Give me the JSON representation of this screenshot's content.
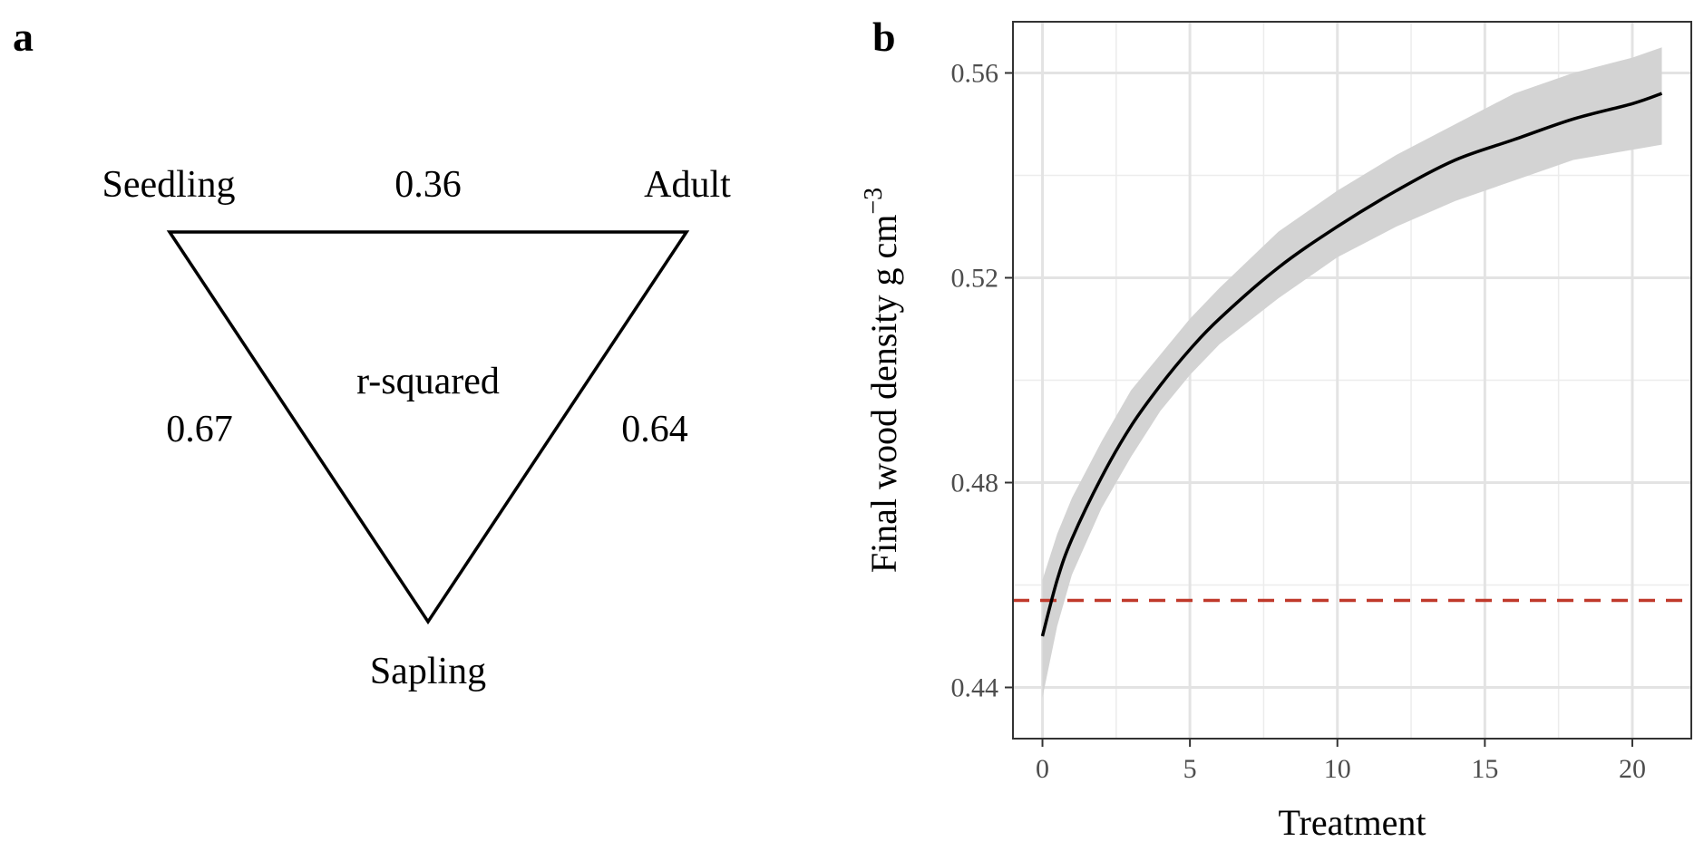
{
  "panel_a": {
    "letter": "a",
    "center_label": "r-squared",
    "nodes": {
      "seedling": "Seedling",
      "adult": "Adult",
      "sapling": "Sapling"
    },
    "edges": {
      "seedling_adult": "0.36",
      "seedling_sapling": "0.67",
      "adult_sapling": "0.64"
    }
  },
  "panel_b": {
    "letter": "b",
    "reference_color": "#c0392b",
    "ribbon_color": "#d3d3d3"
  },
  "chart_data": {
    "type": "line",
    "xlabel": "Treatment",
    "ylabel": "Final wood density g cm",
    "ylabel_superscript": "−3",
    "xlim": [
      -1,
      22
    ],
    "ylim": [
      0.43,
      0.57
    ],
    "xticks": [
      0,
      5,
      10,
      15,
      20
    ],
    "xtick_labels": [
      "0",
      "5",
      "10",
      "15",
      "20"
    ],
    "yticks": [
      0.44,
      0.48,
      0.52,
      0.56
    ],
    "ytick_labels": [
      "0.44",
      "0.48",
      "0.52",
      "0.56"
    ],
    "grid": true,
    "reference_line": {
      "y": 0.457,
      "style": "dashed"
    },
    "fit": {
      "x": [
        0,
        0.5,
        1,
        2,
        3,
        4,
        5,
        6,
        8,
        10,
        12,
        14,
        16,
        18,
        20,
        21
      ],
      "y": [
        0.45,
        0.461,
        0.469,
        0.481,
        0.491,
        0.499,
        0.506,
        0.512,
        0.522,
        0.53,
        0.537,
        0.543,
        0.547,
        0.551,
        0.554,
        0.556
      ],
      "lower": [
        0.438,
        0.452,
        0.462,
        0.475,
        0.485,
        0.494,
        0.501,
        0.507,
        0.516,
        0.524,
        0.53,
        0.535,
        0.539,
        0.543,
        0.545,
        0.546
      ],
      "upper": [
        0.461,
        0.47,
        0.477,
        0.488,
        0.498,
        0.505,
        0.512,
        0.518,
        0.529,
        0.537,
        0.544,
        0.55,
        0.556,
        0.56,
        0.563,
        0.565
      ]
    }
  }
}
